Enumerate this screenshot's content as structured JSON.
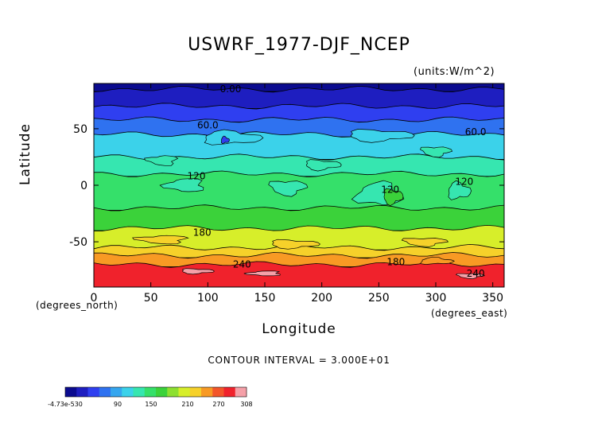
{
  "chart_data": {
    "type": "heatmap",
    "title": "USWRF_1977-DJF_NCEP",
    "units": "(units:W/m^2)",
    "xlabel": "Longitude",
    "ylabel": "Latitude",
    "x_units": "(degrees_east)",
    "y_units": "(degrees_north)",
    "xlim": [
      0,
      360
    ],
    "ylim": [
      -90,
      90
    ],
    "x_ticks": [
      0,
      50,
      100,
      150,
      200,
      250,
      300,
      350
    ],
    "y_ticks": [
      50,
      0,
      -50
    ],
    "contour_interval_text": "CONTOUR INTERVAL = 3.000E+01",
    "contour_interval": 30,
    "lat_bands": [
      {
        "lat_top": 90,
        "lat_bottom": 85,
        "value": 0
      },
      {
        "lat_top": 85,
        "lat_bottom": 70,
        "value": 20
      },
      {
        "lat_top": 70,
        "lat_bottom": 58,
        "value": 45
      },
      {
        "lat_top": 58,
        "lat_bottom": 45,
        "value": 75
      },
      {
        "lat_top": 45,
        "lat_bottom": 25,
        "value": 100
      },
      {
        "lat_top": 25,
        "lat_bottom": 10,
        "value": 125
      },
      {
        "lat_top": 10,
        "lat_bottom": -20,
        "value": 145
      },
      {
        "lat_top": -20,
        "lat_bottom": -38,
        "value": 160
      },
      {
        "lat_top": -38,
        "lat_bottom": -55,
        "value": 195
      },
      {
        "lat_top": -55,
        "lat_bottom": -62,
        "value": 215
      },
      {
        "lat_top": -62,
        "lat_bottom": -70,
        "value": 245
      },
      {
        "lat_top": -70,
        "lat_bottom": -90,
        "value": 280
      }
    ],
    "contour_labels": [
      {
        "text": "0.00",
        "lon": 120,
        "lat": 85
      },
      {
        "text": "60.0",
        "lon": 100,
        "lat": 53
      },
      {
        "text": "60.0",
        "lon": 335,
        "lat": 47
      },
      {
        "text": "120",
        "lon": 90,
        "lat": 8
      },
      {
        "text": "120",
        "lon": 260,
        "lat": -4
      },
      {
        "text": "120",
        "lon": 325,
        "lat": 3
      },
      {
        "text": "180",
        "lon": 95,
        "lat": -42
      },
      {
        "text": "180",
        "lon": 265,
        "lat": -68
      },
      {
        "text": "240",
        "lon": 130,
        "lat": -70
      },
      {
        "text": "240",
        "lon": 335,
        "lat": -78
      }
    ],
    "colorbar": {
      "min_label": "-4.73e-5",
      "labels": [
        "-4.73e-530",
        "90",
        "150",
        "210",
        "270",
        "308"
      ],
      "colors": [
        "#0b0b8f",
        "#1e1ec0",
        "#2f3ff0",
        "#2f72f0",
        "#35a6ef",
        "#3bd2ea",
        "#36e6b0",
        "#35e06a",
        "#3bd23a",
        "#8de030",
        "#d7ee2a",
        "#f6d12a",
        "#f89a24",
        "#f3562a",
        "#f0222c",
        "#f5a0a8"
      ]
    }
  }
}
